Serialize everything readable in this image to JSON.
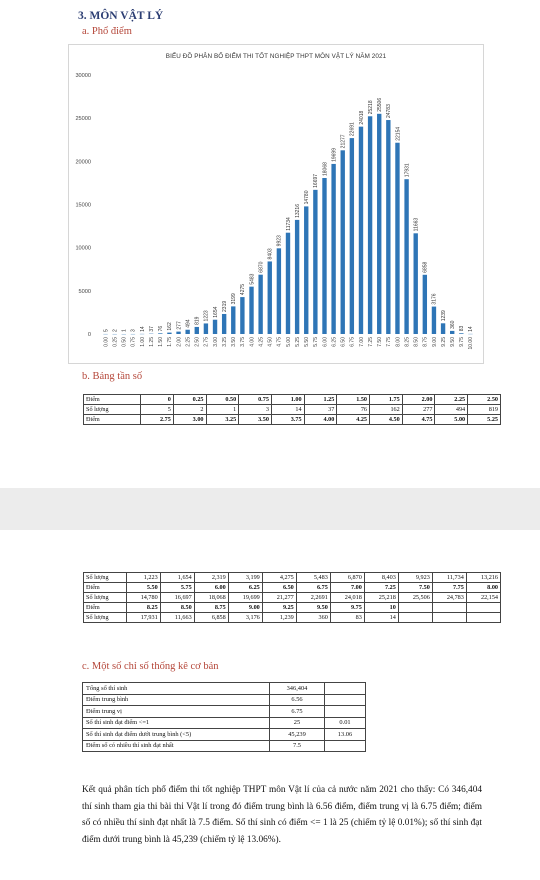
{
  "section_title": "3. MÔN VẬT LÝ",
  "subsection_a": "a. Phổ điểm",
  "chart_data": {
    "type": "bar",
    "title": "BIỂU ĐỒ PHÂN BỐ ĐIỂM THI TỐT NGHIỆP THPT MÔN VẬT LÝ NĂM 2021",
    "xlabel": "",
    "ylabel": "",
    "ylim": [
      0,
      30000
    ],
    "yticks": [
      "0",
      "5000",
      "10000",
      "15000",
      "20000",
      "25000",
      "30000"
    ],
    "color": "#2e75b6",
    "categories": [
      "0.00",
      "0.25",
      "0.50",
      "0.75",
      "1.00",
      "1.25",
      "1.50",
      "1.75",
      "2.00",
      "2.25",
      "2.50",
      "2.75",
      "3.00",
      "3.25",
      "3.50",
      "3.75",
      "4.00",
      "4.25",
      "4.50",
      "4.75",
      "5.00",
      "5.25",
      "5.50",
      "5.75",
      "6.00",
      "6.25",
      "6.50",
      "6.75",
      "7.00",
      "7.25",
      "7.50",
      "7.75",
      "8.00",
      "8.25",
      "8.50",
      "8.75",
      "9.00",
      "9.25",
      "9.50",
      "9.75",
      "10.00"
    ],
    "values": [
      5,
      2,
      1,
      3,
      14,
      37,
      76,
      162,
      277,
      494,
      819,
      1223,
      1654,
      2319,
      3199,
      4275,
      5483,
      6870,
      8403,
      9923,
      11734,
      13216,
      14780,
      16697,
      18068,
      19699,
      21277,
      22691,
      24018,
      25218,
      25506,
      24783,
      22154,
      17931,
      11663,
      6858,
      3176,
      1239,
      360,
      83,
      14
    ],
    "data_labels": [
      "5",
      "2",
      "1",
      "3",
      "14",
      "37",
      "76",
      "162",
      "277",
      "494",
      "819",
      "1223",
      "1654",
      "2319",
      "3199",
      "4275",
      "5483",
      "6870",
      "8403",
      "9923",
      "11734",
      "13216",
      "14780",
      "16697",
      "18068",
      "19699",
      "21277",
      "22691",
      "24018",
      "25218",
      "25506",
      "24783",
      "22154",
      "17931",
      "11663",
      "6858",
      "3176",
      "1239",
      "360",
      "83",
      "14"
    ],
    "grid": false,
    "legend": "none"
  },
  "subsection_b": "b. Bảng tần số",
  "table1": [
    {
      "label": "Điểm",
      "bold": true,
      "cells": [
        "0",
        "0.25",
        "0.50",
        "0.75",
        "1.00",
        "1.25",
        "1.50",
        "1.75",
        "2.00",
        "2.25",
        "2.50"
      ]
    },
    {
      "label": "Số lượng",
      "bold": false,
      "cells": [
        "5",
        "2",
        "1",
        "3",
        "14",
        "37",
        "76",
        "162",
        "277",
        "494",
        "819"
      ]
    },
    {
      "label": "Điểm",
      "bold": true,
      "cells": [
        "2.75",
        "3.00",
        "3.25",
        "3.50",
        "3.75",
        "4.00",
        "4.25",
        "4.50",
        "4.75",
        "5.00",
        "5.25"
      ]
    }
  ],
  "table2": [
    {
      "label": "Số lượng",
      "bold": false,
      "cells": [
        "1,223",
        "1,654",
        "2,319",
        "3,199",
        "4,275",
        "5,483",
        "6,870",
        "8,403",
        "9,923",
        "11,734",
        "13,216"
      ]
    },
    {
      "label": "Điểm",
      "bold": true,
      "cells": [
        "5.50",
        "5.75",
        "6.00",
        "6.25",
        "6.50",
        "6.75",
        "7.00",
        "7.25",
        "7.50",
        "7.75",
        "8.00"
      ]
    },
    {
      "label": "Số lượng",
      "bold": false,
      "cells": [
        "14,780",
        "16,697",
        "18,068",
        "19,699",
        "21,277",
        "2,2691",
        "24,018",
        "25,218",
        "25,506",
        "24,783",
        "22,154"
      ]
    },
    {
      "label": "Điểm",
      "bold": true,
      "cells": [
        "8.25",
        "8.50",
        "8.75",
        "9.00",
        "9.25",
        "9.50",
        "9.75",
        "10",
        "",
        "",
        ""
      ]
    },
    {
      "label": "Số lượng",
      "bold": false,
      "cells": [
        "17,931",
        "11,663",
        "6,858",
        "3,176",
        "1,239",
        "360",
        "83",
        "14",
        "",
        "",
        ""
      ]
    }
  ],
  "subsection_c": "c. Một số chỉ số thống kê cơ bản",
  "stats": [
    {
      "label": "Tổng số thí sinh",
      "value": "346,404",
      "extra": ""
    },
    {
      "label": "Điểm trung bình",
      "value": "6.56",
      "extra": ""
    },
    {
      "label": "Điểm trung vị",
      "value": "6.75",
      "extra": ""
    },
    {
      "label": "Số thí sinh đạt điểm <=1",
      "value": "25",
      "extra": "0.01"
    },
    {
      "label": "Số thí sinh đạt điểm dưới trung bình (<5)",
      "value": "45,239",
      "extra": "13.06"
    },
    {
      "label": "Điểm số có nhiều thí sinh đạt nhất",
      "value": "7.5",
      "extra": ""
    }
  ],
  "paragraph": "Kết quả phân tích phổ điểm thi tốt nghiệp THPT môn Vật lí của cả nước năm 2021 cho thấy: Có 346,404 thí sinh tham gia thi bài thi Vật lí trong đó điểm trung bình là 6.56 điểm, điểm trung vị là 6.75 điểm; điểm số có nhiều thí sinh đạt nhất là 7.5 điểm. Số thí sinh có điểm <= 1 là 25 (chiếm tỷ lệ 0.01%); số thí sinh đạt điểm dưới trung bình là 45,239 (chiếm tỷ lệ 13.06%)."
}
